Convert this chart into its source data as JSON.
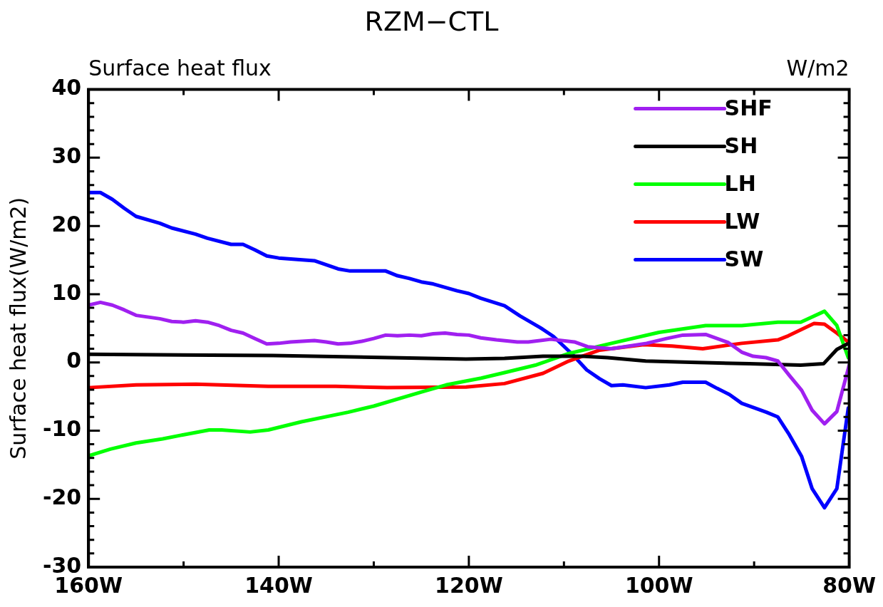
{
  "chart_data": {
    "type": "line",
    "title": "RZM−CTL",
    "subtitle": "Surface heat flux",
    "annotations": [
      "W/m2"
    ],
    "ylabel": "Surface heat flux(W/m2)",
    "xlim": [
      -160,
      -80
    ],
    "ylim": [
      -30,
      40
    ],
    "xticks": [
      {
        "value": -160,
        "label": "160W"
      },
      {
        "value": -150,
        "label": null
      },
      {
        "value": -140,
        "label": "140W"
      },
      {
        "value": -130,
        "label": null
      },
      {
        "value": -120,
        "label": "120W"
      },
      {
        "value": -110,
        "label": null
      },
      {
        "value": -100,
        "label": "100W"
      },
      {
        "value": -90,
        "label": null
      },
      {
        "value": -80,
        "label": "80W"
      }
    ],
    "yticks": [
      -30,
      {
        "value": -28,
        "label": null
      },
      {
        "value": -26,
        "label": null
      },
      {
        "value": -24,
        "label": null
      },
      {
        "value": -22,
        "label": null
      },
      -20,
      {
        "value": -18,
        "label": null
      },
      {
        "value": -16,
        "label": null
      },
      {
        "value": -14,
        "label": null
      },
      {
        "value": -12,
        "label": null
      },
      -10,
      {
        "value": -8,
        "label": null
      },
      {
        "value": -6,
        "label": null
      },
      {
        "value": -4,
        "label": null
      },
      {
        "value": -2,
        "label": null
      },
      0,
      {
        "value": 2,
        "label": null
      },
      {
        "value": 4,
        "label": null
      },
      {
        "value": 6,
        "label": null
      },
      {
        "value": 8,
        "label": null
      },
      10,
      {
        "value": 12,
        "label": null
      },
      {
        "value": 14,
        "label": null
      },
      {
        "value": 16,
        "label": null
      },
      {
        "value": 18,
        "label": null
      },
      20,
      {
        "value": 22,
        "label": null
      },
      {
        "value": 24,
        "label": null
      },
      {
        "value": 26,
        "label": null
      },
      {
        "value": 28,
        "label": null
      },
      30,
      {
        "value": 32,
        "label": null
      },
      {
        "value": 34,
        "label": null
      },
      {
        "value": 36,
        "label": null
      },
      {
        "value": 38,
        "label": null
      },
      40
    ],
    "grid": false,
    "legend": "top right",
    "marker": "none",
    "line_style": "solid",
    "series": [
      {
        "name": "SHF",
        "color": "#a020f0",
        "x": [
          -160,
          -158.75,
          -157.5,
          -156.25,
          -155,
          -152.5,
          -151.25,
          -150,
          -148.75,
          -147.5,
          -146.25,
          -145,
          -143.75,
          -142.5,
          -141.25,
          -140,
          -138.75,
          -136.25,
          -135,
          -133.75,
          -132.5,
          -131.25,
          -130,
          -128.75,
          -127.5,
          -126.25,
          -125,
          -123.75,
          -122.5,
          -121.25,
          -120,
          -118.75,
          -117.1,
          -114.9,
          -113.75,
          -111.4,
          -108.9,
          -107.5,
          -105,
          -101.3,
          -99.2,
          -97.5,
          -95.1,
          -92.7,
          -91.3,
          -90.1,
          -88.75,
          -87.5,
          -86.3,
          -85,
          -83.9,
          -82.6,
          -81.3,
          -80
        ],
        "values": [
          8.4,
          8.8,
          8.4,
          7.7,
          6.9,
          6.4,
          6.0,
          5.9,
          6.1,
          5.9,
          5.4,
          4.7,
          4.3,
          3.5,
          2.7,
          2.8,
          3.0,
          3.2,
          3.0,
          2.7,
          2.8,
          3.1,
          3.5,
          4.0,
          3.9,
          4.0,
          3.9,
          4.2,
          4.3,
          4.1,
          4.0,
          3.6,
          3.3,
          3.0,
          3.0,
          3.4,
          3.0,
          2.3,
          2.0,
          2.8,
          3.5,
          4.0,
          4.1,
          2.9,
          1.5,
          0.9,
          0.7,
          0.2,
          -1.9,
          -4.1,
          -7.0,
          -9.0,
          -7.2,
          -0.4
        ]
      },
      {
        "name": "SH",
        "color": "#000000",
        "x": [
          -160,
          -140.6,
          -120.3,
          -116.25,
          -112.2,
          -108.1,
          -105.4,
          -101.4,
          -96,
          -90.5,
          -85.1,
          -82.7,
          -81.3,
          -80.2
        ],
        "values": [
          1.2,
          1.0,
          0.5,
          0.6,
          0.9,
          0.9,
          0.7,
          0.2,
          0.0,
          -0.2,
          -0.4,
          -0.2,
          1.9,
          2.7
        ]
      },
      {
        "name": "LH",
        "color": "#00ff00",
        "x": [
          -160,
          -157.7,
          -155,
          -152.2,
          -150,
          -147.3,
          -146,
          -143,
          -141.1,
          -137.6,
          -132.7,
          -130,
          -124.9,
          -122.4,
          -118.7,
          -116.25,
          -113,
          -109.5,
          -105,
          -100,
          -95.1,
          -91.3,
          -87.5,
          -85.1,
          -82.6,
          -81.3,
          -80.1
        ],
        "values": [
          -13.7,
          -12.7,
          -11.8,
          -11.2,
          -10.6,
          -9.9,
          -9.9,
          -10.2,
          -9.9,
          -8.7,
          -7.3,
          -6.4,
          -4.3,
          -3.3,
          -2.3,
          -1.5,
          -0.4,
          1.3,
          2.8,
          4.4,
          5.4,
          5.4,
          5.9,
          5.9,
          7.5,
          5.4,
          0.7
        ]
      },
      {
        "name": "LW",
        "color": "#ff0000",
        "x": [
          -160,
          -155,
          -148.7,
          -141.1,
          -134,
          -128.6,
          -120.3,
          -116.25,
          -112.2,
          -109.5,
          -106.25,
          -101.6,
          -98.6,
          -95.4,
          -91.3,
          -87.5,
          -86.4,
          -83.7,
          -82.6,
          -81.3,
          -80.1
        ],
        "values": [
          -3.7,
          -3.3,
          -3.2,
          -3.5,
          -3.5,
          -3.7,
          -3.6,
          -3.1,
          -1.6,
          0.2,
          1.8,
          2.6,
          2.4,
          2.0,
          2.8,
          3.3,
          3.9,
          5.7,
          5.6,
          4.3,
          3.0
        ]
      },
      {
        "name": "SW",
        "color": "#0000ff",
        "x": [
          -160,
          -158.75,
          -157.5,
          -156.25,
          -155,
          -152.5,
          -151.25,
          -148.75,
          -147.5,
          -145,
          -143.75,
          -142.5,
          -141.25,
          -140,
          -136.25,
          -133.75,
          -132.5,
          -128.75,
          -127.5,
          -126.25,
          -125,
          -123.75,
          -122.5,
          -121.25,
          -120,
          -118.75,
          -116.25,
          -114.6,
          -112.5,
          -111.1,
          -109.2,
          -107.6,
          -106.25,
          -105,
          -103.8,
          -101.4,
          -98.9,
          -97.5,
          -95.1,
          -93.9,
          -92.6,
          -91.3,
          -90.1,
          -88.7,
          -87.5,
          -86.3,
          -85,
          -83.9,
          -82.6,
          -81.3,
          -80.1
        ],
        "values": [
          24.9,
          24.9,
          23.9,
          22.6,
          21.4,
          20.4,
          19.7,
          18.8,
          18.2,
          17.3,
          17.3,
          16.5,
          15.6,
          15.3,
          14.9,
          13.7,
          13.4,
          13.4,
          12.7,
          12.3,
          11.8,
          11.5,
          11.0,
          10.5,
          10.1,
          9.4,
          8.3,
          6.8,
          5.1,
          3.8,
          1.3,
          -1.1,
          -2.4,
          -3.4,
          -3.3,
          -3.7,
          -3.3,
          -2.9,
          -2.9,
          -3.8,
          -4.7,
          -6.0,
          -6.6,
          -7.3,
          -8.0,
          -10.6,
          -13.8,
          -18.5,
          -21.3,
          -18.5,
          -6.7
        ]
      }
    ]
  }
}
